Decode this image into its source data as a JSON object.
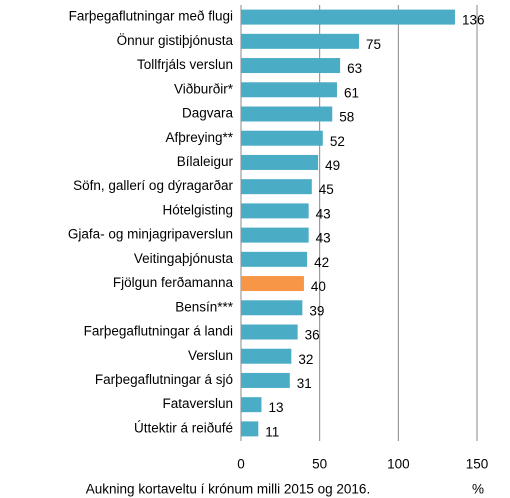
{
  "chart_data": {
    "type": "hbar",
    "categories": [
      "Farþegaflutningar með flugi",
      "Önnur gistiþjónusta",
      "Tollfrjáls verslun",
      "Viðburðir*",
      "Dagvara",
      "Afþreying**",
      "Bílaleigur",
      "Söfn, gallerí og dýragarðar",
      "Hótelgisting",
      "Gjafa- og minjagripaverslun",
      "Veitingaþjónusta",
      "Fjölgun ferðamanna",
      "Bensín***",
      "Farþegaflutningar á landi",
      "Verslun",
      "Farþegaflutningar á sjó",
      "Fataverslun",
      "Úttektir á reiðufé"
    ],
    "values": [
      136,
      75,
      63,
      61,
      58,
      52,
      49,
      45,
      43,
      43,
      42,
      40,
      39,
      36,
      32,
      31,
      13,
      11
    ],
    "colors": [
      "#4bacc6",
      "#4bacc6",
      "#4bacc6",
      "#4bacc6",
      "#4bacc6",
      "#4bacc6",
      "#4bacc6",
      "#4bacc6",
      "#4bacc6",
      "#4bacc6",
      "#4bacc6",
      "#f79646",
      "#4bacc6",
      "#4bacc6",
      "#4bacc6",
      "#4bacc6",
      "#4bacc6",
      "#4bacc6"
    ],
    "xlim": [
      0,
      150
    ],
    "xticks": [
      0,
      50,
      100,
      150
    ],
    "grid": true,
    "xlabel": "Aukning kortaveltu í krónum milli 2015 og 2016.",
    "x_unit_label": "%"
  }
}
